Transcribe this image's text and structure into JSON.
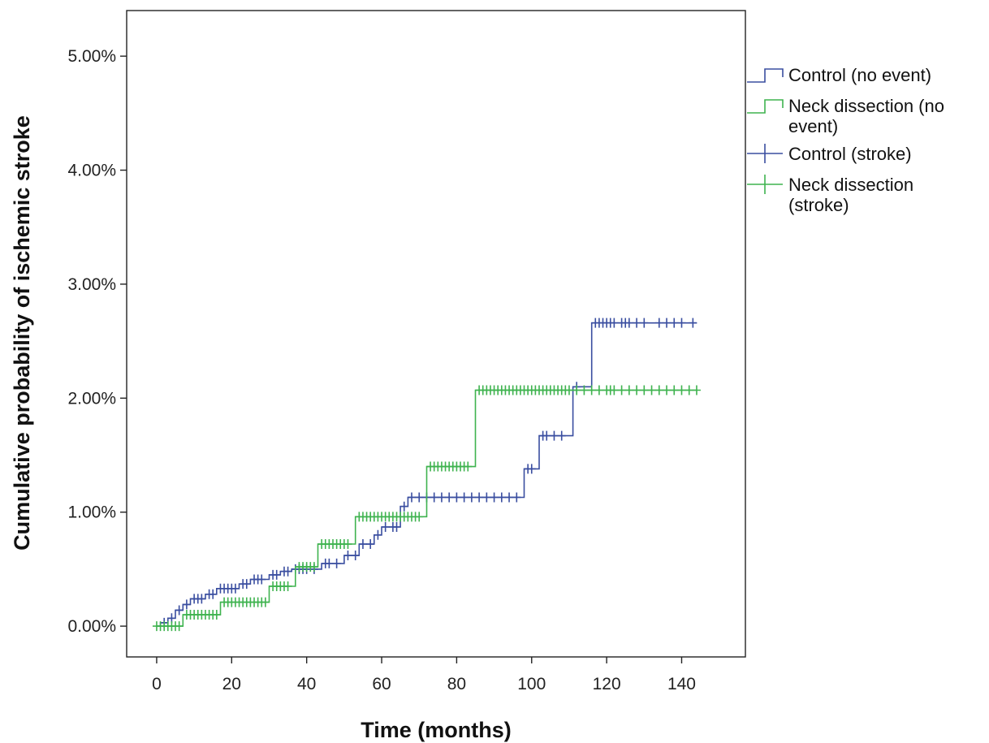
{
  "chart_data": {
    "type": "line",
    "subtype": "step",
    "xlabel": "Time (months)",
    "ylabel": "Cumulative probability of ischemic stroke",
    "xlim": [
      -8,
      157
    ],
    "ylim": [
      -0.27,
      5.4
    ],
    "xticks": [
      0,
      20,
      40,
      60,
      80,
      100,
      120,
      140
    ],
    "xtick_labels": [
      "0",
      "20",
      "40",
      "60",
      "80",
      "100",
      "120",
      "140"
    ],
    "yticks": [
      0,
      1,
      2,
      3,
      4,
      5
    ],
    "ytick_labels": [
      "0.00%",
      "1.00%",
      "2.00%",
      "3.00%",
      "4.00%",
      "5.00%"
    ],
    "grid": false,
    "legend_position": "outside-right",
    "legend": [
      {
        "label": "Control (no event)",
        "series": "control",
        "glyph": "step"
      },
      {
        "label": "Neck dissection (no event)",
        "series": "neck",
        "glyph": "step",
        "lines": [
          "Neck dissection (no",
          "event)"
        ]
      },
      {
        "label": "Control (stroke)",
        "series": "control",
        "glyph": "cross"
      },
      {
        "label": "Neck dissection (stroke)",
        "series": "neck",
        "glyph": "cross",
        "lines": [
          "Neck dissection",
          "(stroke)"
        ]
      }
    ],
    "series": [
      {
        "name": "Control",
        "color": "#3a4ea0",
        "steps": [
          [
            0,
            0
          ],
          [
            1,
            0.03
          ],
          [
            3,
            0.07
          ],
          [
            5,
            0.14
          ],
          [
            7,
            0.19
          ],
          [
            9,
            0.24
          ],
          [
            13,
            0.28
          ],
          [
            16,
            0.33
          ],
          [
            22,
            0.37
          ],
          [
            25,
            0.41
          ],
          [
            30,
            0.45
          ],
          [
            33,
            0.48
          ],
          [
            36,
            0.5
          ],
          [
            44,
            0.55
          ],
          [
            50,
            0.62
          ],
          [
            54,
            0.72
          ],
          [
            58,
            0.8
          ],
          [
            60,
            0.87
          ],
          [
            65,
            1.05
          ],
          [
            67,
            1.13
          ],
          [
            98,
            1.38
          ],
          [
            102,
            1.67
          ],
          [
            111,
            2.1
          ],
          [
            116,
            2.66
          ],
          [
            144,
            2.66
          ]
        ],
        "censor_times": [
          2,
          4,
          6,
          8,
          10,
          11,
          12,
          14,
          15,
          17,
          18,
          19,
          20,
          21,
          23,
          24,
          26,
          27,
          28,
          31,
          32,
          34,
          35,
          37,
          38,
          39,
          40,
          42,
          45,
          46,
          48,
          51,
          53,
          55,
          57,
          59,
          61,
          63,
          64,
          66,
          68,
          70,
          72,
          74,
          76,
          78,
          80,
          82,
          84,
          86,
          88,
          90,
          92,
          94,
          96,
          99,
          100,
          103,
          104,
          106,
          108,
          112,
          117,
          118,
          119,
          120,
          121,
          122,
          124,
          125,
          126,
          128,
          130,
          134,
          136,
          138,
          140,
          143
        ]
      },
      {
        "name": "Neck dissection",
        "color": "#3fb34f",
        "steps": [
          [
            0,
            0
          ],
          [
            7,
            0.1
          ],
          [
            17,
            0.21
          ],
          [
            30,
            0.35
          ],
          [
            37,
            0.52
          ],
          [
            43,
            0.72
          ],
          [
            53,
            0.96
          ],
          [
            72,
            1.4
          ],
          [
            85,
            2.07
          ],
          [
            144,
            2.07
          ]
        ],
        "censor_times": [
          0,
          1,
          2,
          3,
          4,
          5,
          6,
          8,
          9,
          10,
          11,
          12,
          13,
          14,
          15,
          16,
          18,
          19,
          20,
          21,
          22,
          23,
          24,
          25,
          26,
          27,
          28,
          29,
          31,
          32,
          33,
          34,
          35,
          38,
          39,
          40,
          41,
          42,
          44,
          45,
          46,
          47,
          48,
          49,
          50,
          51,
          54,
          55,
          56,
          57,
          58,
          59,
          60,
          61,
          62,
          63,
          64,
          65,
          66,
          67,
          68,
          69,
          70,
          73,
          74,
          75,
          76,
          77,
          78,
          79,
          80,
          81,
          82,
          83,
          86,
          87,
          88,
          89,
          90,
          91,
          92,
          93,
          94,
          95,
          96,
          97,
          98,
          99,
          100,
          101,
          102,
          103,
          104,
          105,
          106,
          107,
          108,
          109,
          110,
          112,
          114,
          116,
          118,
          120,
          121,
          122,
          124,
          126,
          128,
          130,
          132,
          134,
          136,
          138,
          140,
          142,
          144
        ]
      }
    ]
  }
}
